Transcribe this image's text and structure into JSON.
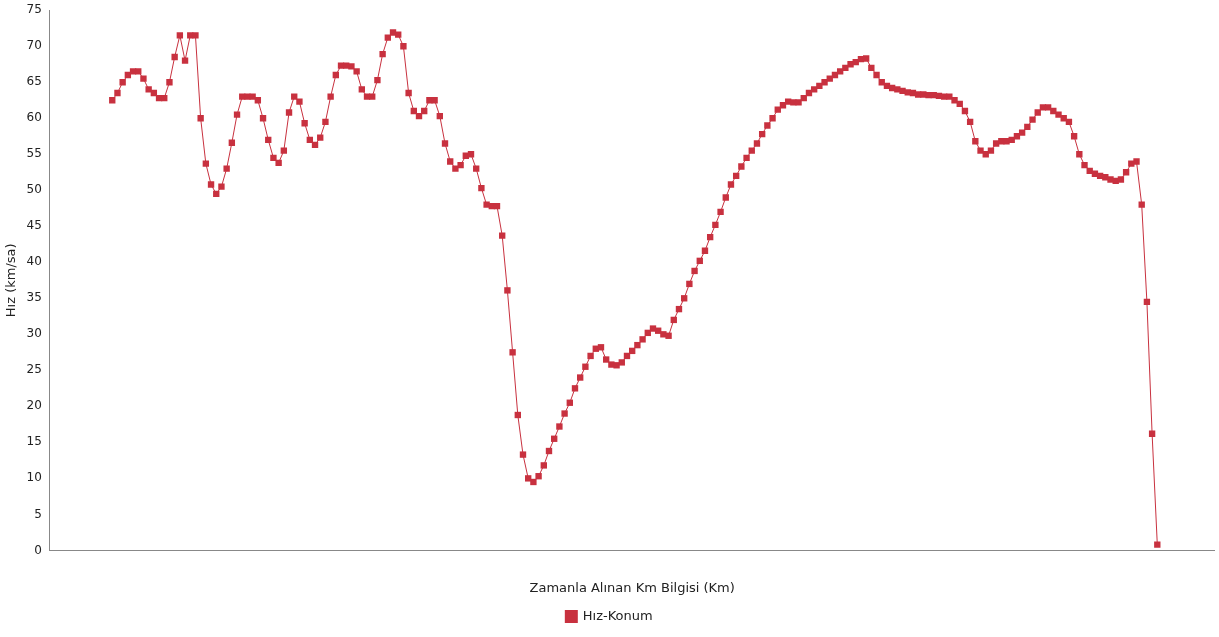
{
  "chart_data": {
    "type": "line",
    "xlabel": "Zamanla Alınan Km Bilgisi (Km)",
    "ylabel": "Hız (km/sa)",
    "ylim": [
      0,
      75
    ],
    "yticks": [
      0,
      5,
      10,
      15,
      20,
      25,
      30,
      35,
      40,
      45,
      50,
      55,
      60,
      65,
      70,
      75
    ],
    "tick_labels": "y",
    "grid": false,
    "legend": "bottom",
    "marker": "square",
    "line_style": "solid",
    "categories": [
      null,
      null,
      null,
      null,
      null,
      null,
      null,
      null,
      null,
      null,
      null,
      null,
      null,
      null,
      null,
      null,
      null,
      null,
      null,
      null,
      null,
      null,
      null,
      null,
      null,
      null,
      null,
      null,
      null,
      null,
      null,
      null,
      null,
      null,
      null,
      null,
      null,
      null,
      null,
      null,
      null,
      null,
      null,
      null,
      null,
      null,
      null,
      null,
      null,
      null,
      null,
      null,
      null,
      null,
      null,
      null,
      null,
      null,
      null,
      null,
      null,
      null,
      null,
      null,
      null,
      null,
      null,
      null,
      null,
      null,
      null,
      null,
      null,
      null,
      null,
      null,
      null,
      null,
      null,
      null,
      null,
      null,
      null,
      null,
      null,
      null,
      null,
      null,
      null,
      null,
      null,
      null,
      null,
      null,
      null,
      null,
      null,
      null,
      null,
      null,
      null,
      null,
      null,
      null,
      null,
      null,
      null,
      null,
      null,
      null,
      null,
      null,
      null,
      null,
      null,
      null,
      null,
      null,
      null,
      null,
      null,
      null,
      null,
      null,
      null,
      null,
      null,
      null,
      null,
      null,
      null,
      null,
      null,
      null,
      null,
      null,
      null,
      null,
      null,
      null,
      null,
      null,
      null,
      null,
      null,
      null,
      null,
      null,
      null,
      null,
      null,
      null,
      null,
      null,
      null,
      null,
      null,
      null,
      null,
      null,
      null,
      null,
      null,
      null,
      null,
      null,
      null,
      null,
      null,
      null,
      null,
      null,
      null,
      null,
      null,
      null,
      null,
      null,
      null,
      null,
      null,
      null,
      null,
      null,
      null,
      null,
      null,
      null,
      null,
      null,
      null,
      null,
      null,
      null,
      null,
      null,
      null,
      null,
      null,
      null,
      null,
      null
    ],
    "series": [
      {
        "name": "Hız-Konum",
        "color": "#c8313f",
        "values": [
          62.5,
          63.5,
          65,
          66,
          66.5,
          66.5,
          65.5,
          64,
          63.5,
          62.8,
          62.8,
          65,
          68.5,
          71.5,
          68,
          71.5,
          71.5,
          60,
          53.7,
          50.8,
          49.5,
          50.5,
          53,
          56.6,
          60.5,
          63,
          63,
          63,
          62.5,
          60,
          57,
          54.5,
          53.8,
          55.5,
          60.8,
          63,
          62.3,
          59.3,
          57,
          56.3,
          57.3,
          59.5,
          63,
          66,
          67.3,
          67.3,
          67.2,
          66.5,
          64,
          63,
          63,
          65.3,
          68.9,
          71.2,
          71.9,
          71.6,
          70,
          63.5,
          61,
          60.3,
          61,
          62.5,
          62.5,
          60.3,
          56.5,
          54,
          53,
          53.5,
          54.8,
          55,
          53,
          50.3,
          48,
          47.8,
          47.8,
          43.7,
          36.1,
          27.5,
          18.8,
          13.3,
          10,
          9.5,
          10.3,
          11.8,
          13.8,
          15.5,
          17.2,
          19,
          20.5,
          22.5,
          24,
          25.5,
          27,
          28,
          28.2,
          26.5,
          25.8,
          25.7,
          26.1,
          27,
          27.7,
          28.5,
          29.3,
          30.2,
          30.8,
          30.5,
          30,
          29.8,
          32,
          33.5,
          35,
          37,
          38.8,
          40.2,
          41.6,
          43.5,
          45.2,
          47,
          49,
          50.8,
          52,
          53.3,
          54.5,
          55.5,
          56.5,
          57.8,
          59,
          60,
          61.2,
          61.8,
          62.3,
          62.2,
          62.2,
          62.8,
          63.5,
          64,
          64.5,
          65,
          65.5,
          66,
          66.5,
          67,
          67.5,
          67.8,
          68.2,
          68.3,
          67,
          66,
          65,
          64.5,
          64.2,
          64,
          63.8,
          63.6,
          63.5,
          63.3,
          63.3,
          63.2,
          63.2,
          63.1,
          63,
          63,
          62.5,
          62,
          61,
          59.5,
          56.8,
          55.5,
          55,
          55.5,
          56.5,
          56.8,
          56.8,
          57,
          57.5,
          58,
          58.8,
          59.8,
          60.8,
          61.5,
          61.5,
          61,
          60.5,
          60,
          59.5,
          57.5,
          55,
          53.5,
          52.7,
          52.3,
          52,
          51.8,
          51.5,
          51.3,
          51.5,
          52.5,
          53.7,
          54,
          48,
          34.5,
          16.2,
          0.8
        ]
      }
    ]
  }
}
